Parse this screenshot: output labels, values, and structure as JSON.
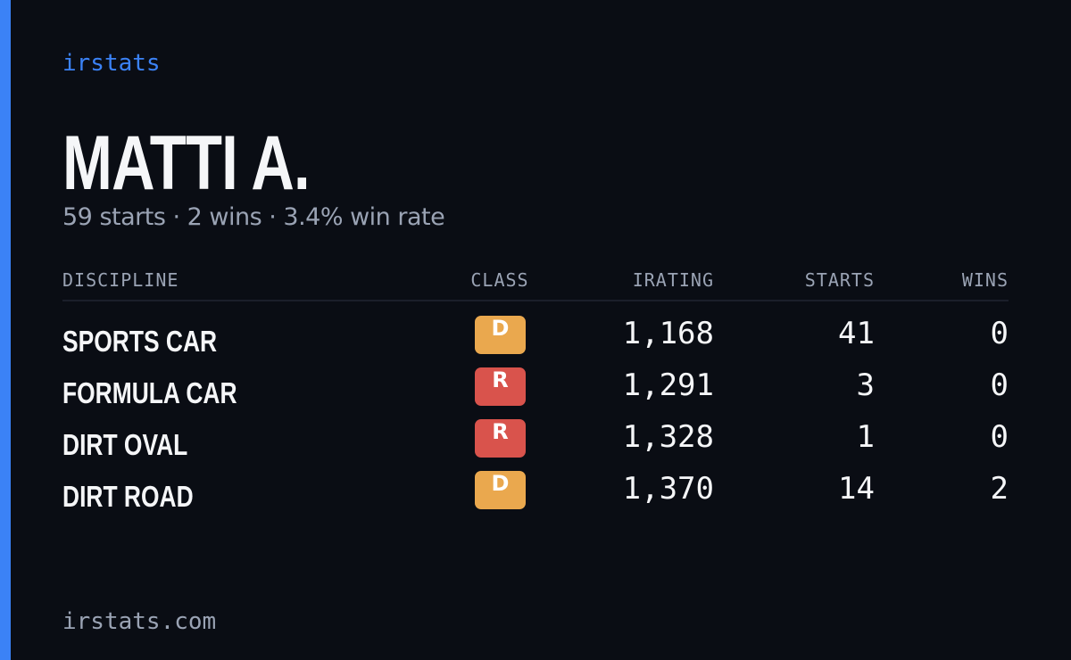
{
  "brand": "irstats",
  "driver": {
    "name": "MATTI A.",
    "summary": "59 starts · 2 wins · 3.4% win rate"
  },
  "table": {
    "headers": [
      "DISCIPLINE",
      "CLASS",
      "IRATING",
      "STARTS",
      "WINS"
    ],
    "rows": [
      [
        "SPORTS CAR",
        "D",
        "1,168",
        "41",
        "0"
      ],
      [
        "FORMULA CAR",
        "R",
        "1,291",
        "3",
        "0"
      ],
      [
        "DIRT OVAL",
        "R",
        "1,328",
        "1",
        "0"
      ],
      [
        "DIRT ROAD",
        "D",
        "1,370",
        "14",
        "2"
      ]
    ],
    "class_colors": {
      "D": "#eaa84e",
      "R": "#d9534c"
    }
  },
  "footer": "irstats.com"
}
